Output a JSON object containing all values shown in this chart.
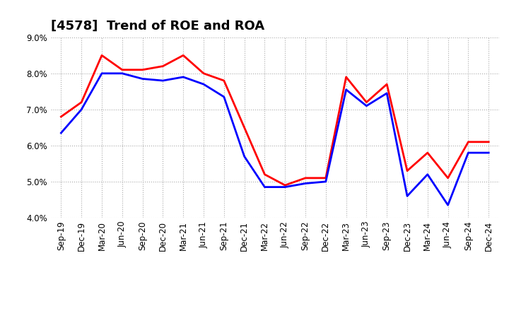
{
  "title": "[4578]  Trend of ROE and ROA",
  "labels": [
    "Sep-19",
    "Dec-19",
    "Mar-20",
    "Jun-20",
    "Sep-20",
    "Dec-20",
    "Mar-21",
    "Jun-21",
    "Sep-21",
    "Dec-21",
    "Mar-22",
    "Jun-22",
    "Sep-22",
    "Dec-22",
    "Mar-23",
    "Jun-23",
    "Sep-23",
    "Dec-23",
    "Mar-24",
    "Jun-24",
    "Sep-24",
    "Dec-24"
  ],
  "ROE": [
    6.8,
    7.2,
    8.5,
    8.1,
    8.1,
    8.2,
    8.5,
    8.0,
    7.8,
    6.5,
    5.2,
    4.9,
    5.1,
    5.1,
    7.9,
    7.2,
    7.7,
    5.3,
    5.8,
    5.1,
    6.1,
    6.1
  ],
  "ROA": [
    6.35,
    7.0,
    8.0,
    8.0,
    7.85,
    7.8,
    7.9,
    7.7,
    7.35,
    5.7,
    4.85,
    4.85,
    4.95,
    5.0,
    7.55,
    7.1,
    7.45,
    4.6,
    5.2,
    4.35,
    5.8,
    5.8
  ],
  "ROE_color": "#FF0000",
  "ROA_color": "#0000FF",
  "ylim": [
    4.0,
    9.0
  ],
  "yticks": [
    4.0,
    5.0,
    6.0,
    7.0,
    8.0,
    9.0
  ],
  "background_color": "#FFFFFF",
  "plot_bg_color": "#FFFFFF",
  "grid_color": "#AAAAAA",
  "title_fontsize": 13,
  "linewidth": 2.0,
  "tick_fontsize": 8.5
}
